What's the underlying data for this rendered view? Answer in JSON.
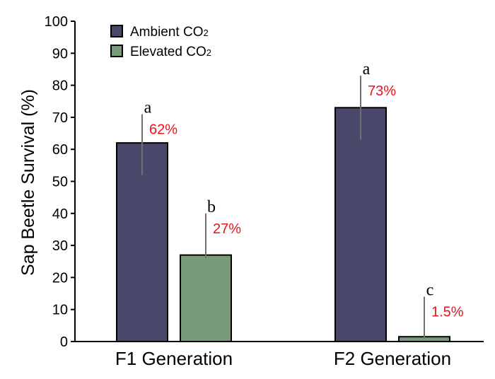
{
  "chart_data": {
    "type": "bar",
    "categories": [
      "F1 Generation",
      "F2 Generation"
    ],
    "ylabel": "Sap Beetle Survival (%)",
    "ylim": [
      0,
      100
    ],
    "yticks": [
      0,
      10,
      20,
      30,
      40,
      50,
      60,
      70,
      80,
      90,
      100
    ],
    "grid": false,
    "legend_position": "top-left",
    "series": [
      {
        "name": "Ambient CO",
        "name_subscript": "2",
        "color": "#48486a",
        "values": [
          62,
          73
        ],
        "error_upper": [
          71,
          83
        ],
        "error_lower": [
          52,
          63
        ],
        "significance": [
          "a",
          "a"
        ],
        "value_labels": [
          "62%",
          "73%"
        ]
      },
      {
        "name": "Elevated CO",
        "name_subscript": "2",
        "color": "#789a78",
        "values": [
          27,
          1.5
        ],
        "error_upper": [
          40,
          14
        ],
        "error_lower": [
          26,
          1
        ],
        "significance": [
          "b",
          "c"
        ],
        "value_labels": [
          "27%",
          "1.5%"
        ]
      }
    ],
    "value_label_color": "#e8131b"
  }
}
